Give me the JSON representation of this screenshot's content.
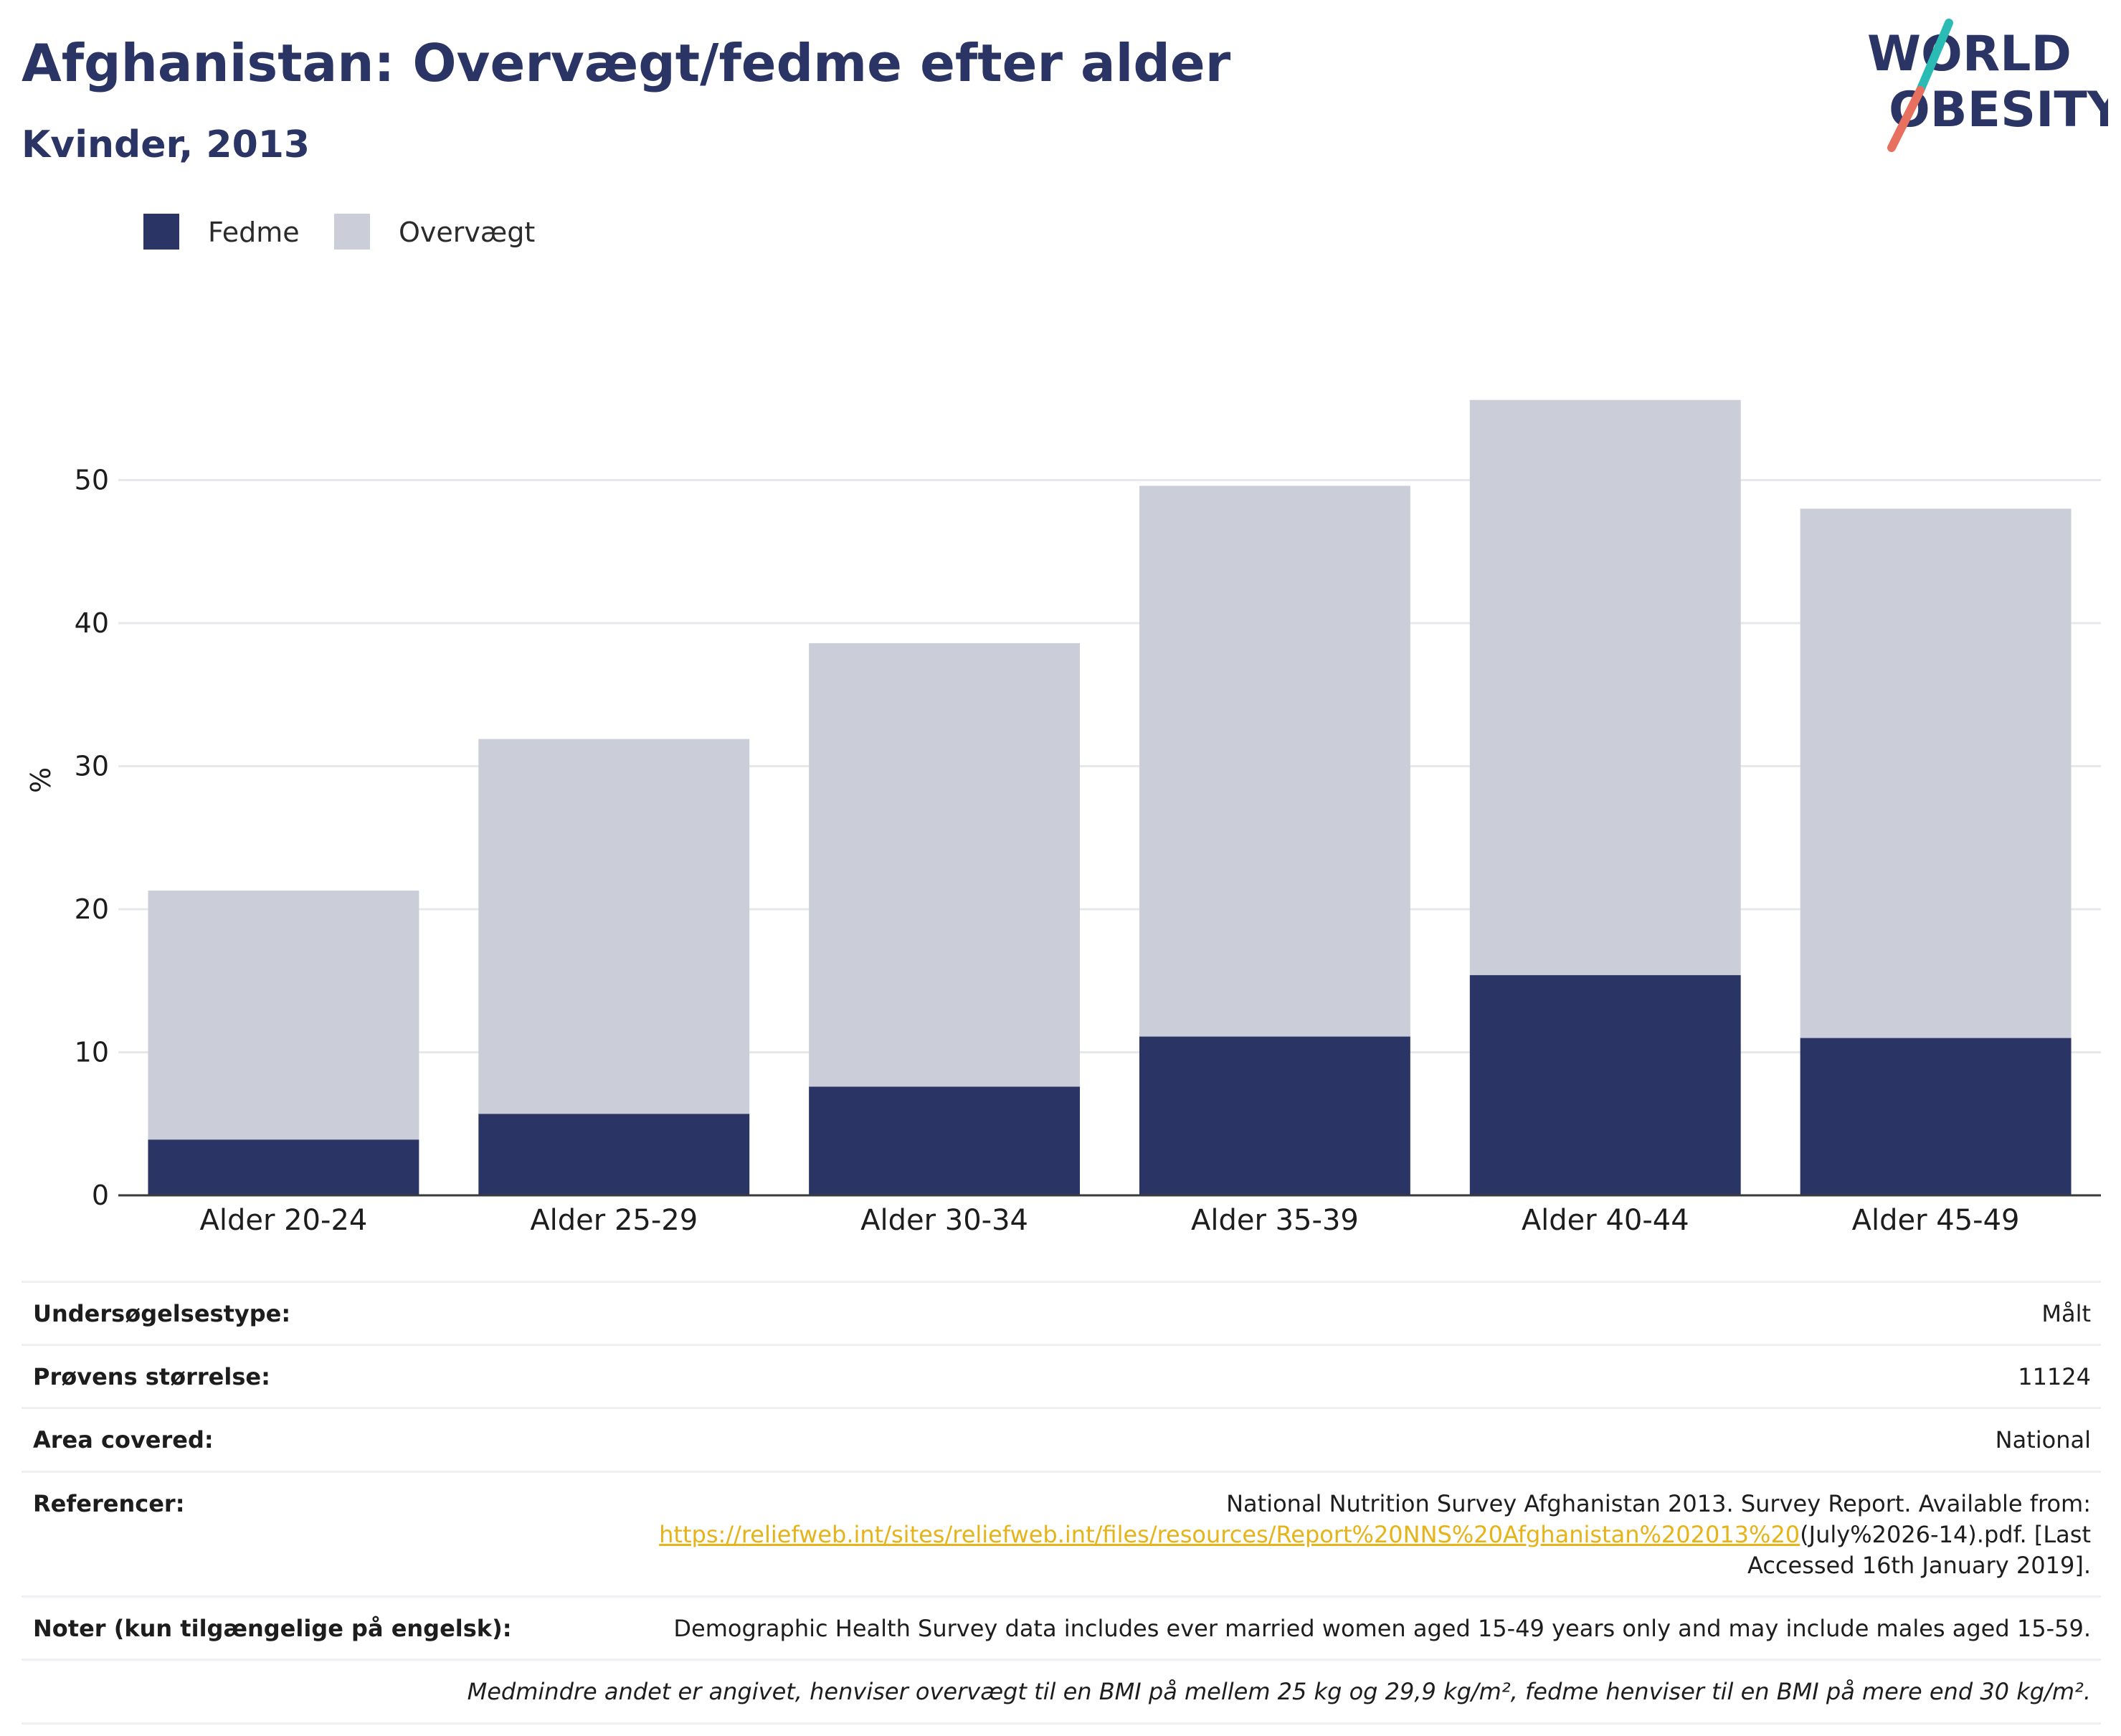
{
  "header": {
    "title": "Afghanistan: Overvægt/fedme efter alder",
    "subtitle": "Kvinder, 2013",
    "logo_line1": "WORLD",
    "logo_line2": "OBESITY"
  },
  "legend": {
    "items": [
      {
        "label": "Fedme",
        "color": "#2a3565"
      },
      {
        "label": "Overvægt",
        "color": "#cbcdd9"
      }
    ]
  },
  "chart_data": {
    "type": "bar",
    "stacked": true,
    "categories": [
      "Alder 20-24",
      "Alder 25-29",
      "Alder 30-34",
      "Alder 35-39",
      "Alder 40-44",
      "Alder 45-49"
    ],
    "series": [
      {
        "name": "Fedme",
        "color": "#2a3565",
        "values": [
          3.9,
          5.7,
          7.6,
          11.1,
          15.4,
          11.0
        ]
      },
      {
        "name": "Overvægt",
        "color": "#cbcdd9",
        "values": [
          17.4,
          26.2,
          31.0,
          38.5,
          40.2,
          37.0
        ]
      }
    ],
    "ylabel": "%",
    "xlabel": "",
    "yticks": [
      0,
      10,
      20,
      30,
      40,
      50
    ],
    "ylim": [
      0,
      60
    ],
    "grid": true
  },
  "info": {
    "survey_type_label": "Undersøgelsestype:",
    "survey_type_value": "Målt",
    "sample_size_label": "Prøvens størrelse:",
    "sample_size_value": "11124",
    "area_label": "Area covered:",
    "area_value": "National",
    "references_label": "Referencer:",
    "references_text_before": "National Nutrition Survey Afghanistan 2013. Survey Report. Available from:",
    "references_link": "https://reliefweb.int/sites/reliefweb.int/files/resources/Report%20NNS%20Afghanistan%202013%20",
    "references_text_after": "(July%2026-14).pdf. [Last Accessed 16th January 2019].",
    "notes_label": "Noter (kun tilgængelige på engelsk):",
    "notes_value": "Demographic Health Survey data includes ever married women aged 15-49 years only and may include males aged 15-59.",
    "footnote": "Medmindre andet er angivet, henviser overvægt til en BMI på mellem 25 kg og 29,9 kg/m², fedme henviser til en BMI på mere end 30 kg/m²."
  }
}
